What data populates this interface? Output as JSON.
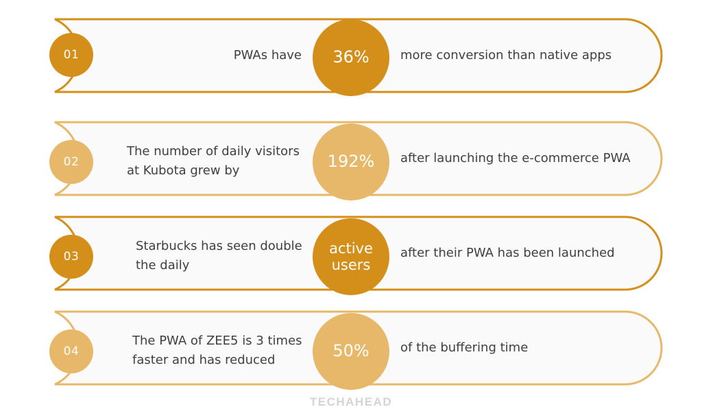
{
  "colors": {
    "dark": "#d48f1a",
    "light": "#e7b86a",
    "text": "#3f3f3f",
    "fill": "#fafafa"
  },
  "items": [
    {
      "number": "01",
      "lead": "PWAs have",
      "stat": "36%",
      "tail": "more conversion than native apps",
      "tone": "dark"
    },
    {
      "number": "02",
      "lead": "The number of daily visitors at Kubota grew by",
      "stat": "192%",
      "tail": "after launching the e-commerce PWA",
      "tone": "light"
    },
    {
      "number": "03",
      "lead": "Starbucks has seen double the daily",
      "stat": "active users",
      "tail": "after their PWA has been launched",
      "tone": "dark"
    },
    {
      "number": "04",
      "lead": "The PWA of ZEE5 is 3 times faster and has reduced",
      "stat": "50%",
      "tail": "of the buffering time",
      "tone": "light"
    }
  ],
  "brand": "TECHAHEAD"
}
